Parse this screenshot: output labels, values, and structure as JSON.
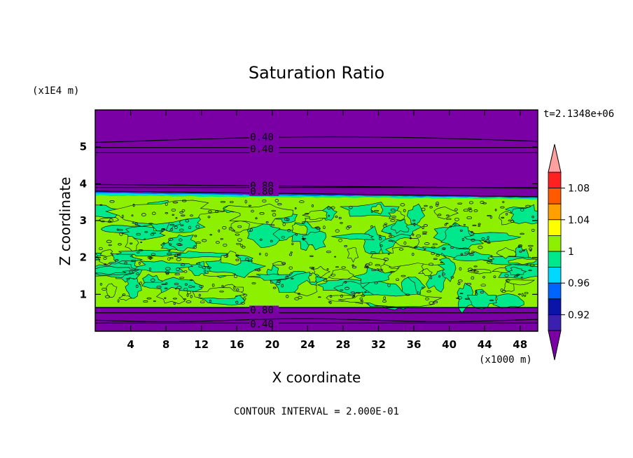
{
  "chart_data": {
    "type": "heatmap",
    "title": "Saturation Ratio",
    "xlabel": "X coordinate",
    "ylabel": "Z coordinate",
    "x_unit": "(x1000 m)",
    "y_unit": "(x1E4 m)",
    "time_label": "t=2.1348e+06",
    "footer": "CONTOUR INTERVAL = 2.000E-01",
    "xlim": [
      0,
      50
    ],
    "ylim": [
      0,
      6
    ],
    "x_ticks": [
      "4",
      "8",
      "12",
      "16",
      "20",
      "24",
      "28",
      "32",
      "36",
      "40",
      "44",
      "48"
    ],
    "y_ticks": [
      "1",
      "2",
      "3",
      "4",
      "5"
    ],
    "colorbar": {
      "labels": [
        "1.08",
        "1.04",
        "1",
        "0.96",
        "0.92"
      ],
      "levels": [
        0.9,
        0.92,
        0.94,
        0.96,
        0.98,
        1.0,
        1.02,
        1.04,
        1.06,
        1.08,
        1.1
      ],
      "colors": [
        "#7a00a6",
        "#3a1fb0",
        "#0a14a8",
        "#0064ff",
        "#00d8ff",
        "#00e88c",
        "#8cf000",
        "#ffff00",
        "#ffa000",
        "#ff5a00",
        "#ff2020",
        "#ffa0a0"
      ]
    },
    "contour_labels": [
      {
        "text": "0.40",
        "x": 17.5,
        "z": 5.27
      },
      {
        "text": "0.40",
        "x": 17.5,
        "z": 4.95
      },
      {
        "text": "0.80",
        "x": 17.5,
        "z": 3.95
      },
      {
        "text": "0.80",
        "x": 17.5,
        "z": 3.8
      },
      {
        "text": "0.80",
        "x": 17.5,
        "z": 0.58
      },
      {
        "text": "0.40",
        "x": 17.5,
        "z": 0.2
      }
    ]
  }
}
